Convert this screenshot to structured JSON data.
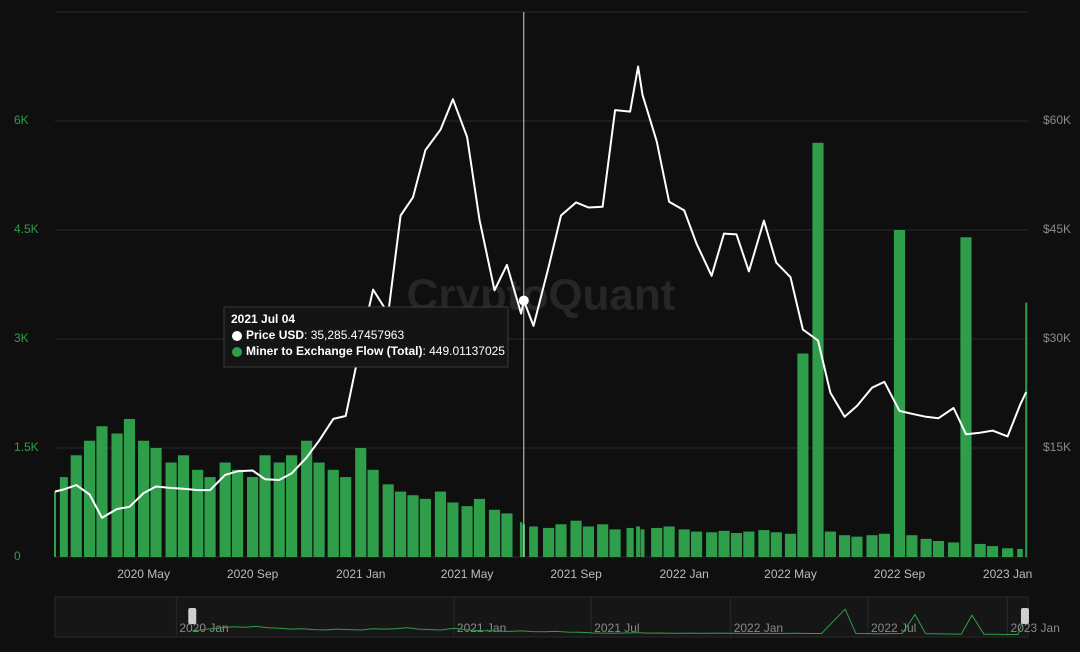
{
  "chart_data": {
    "type": "bar-line",
    "watermark": "CryptoQuant",
    "x": [
      "2020-01-22",
      "2020-02-01",
      "2020-02-15",
      "2020-03-01",
      "2020-03-15",
      "2020-04-01",
      "2020-04-15",
      "2020-05-01",
      "2020-05-15",
      "2020-06-01",
      "2020-06-15",
      "2020-07-01",
      "2020-07-15",
      "2020-08-01",
      "2020-08-15",
      "2020-09-01",
      "2020-09-15",
      "2020-10-01",
      "2020-10-15",
      "2020-11-01",
      "2020-11-15",
      "2020-12-01",
      "2020-12-15",
      "2021-01-01",
      "2021-01-15",
      "2021-02-01",
      "2021-02-15",
      "2021-03-01",
      "2021-03-15",
      "2021-04-01",
      "2021-04-15",
      "2021-05-01",
      "2021-05-15",
      "2021-06-01",
      "2021-06-15",
      "2021-07-01",
      "2021-07-04",
      "2021-07-15",
      "2021-08-01",
      "2021-08-15",
      "2021-09-01",
      "2021-09-15",
      "2021-10-01",
      "2021-10-15",
      "2021-11-01",
      "2021-11-10",
      "2021-11-15",
      "2021-12-01",
      "2021-12-15",
      "2022-01-01",
      "2022-01-15",
      "2022-02-01",
      "2022-02-15",
      "2022-03-01",
      "2022-03-15",
      "2022-04-01",
      "2022-04-15",
      "2022-05-01",
      "2022-05-15",
      "2022-06-01",
      "2022-06-15",
      "2022-07-01",
      "2022-07-15",
      "2022-08-01",
      "2022-08-15",
      "2022-09-01",
      "2022-09-15",
      "2022-10-01",
      "2022-10-15",
      "2022-11-01",
      "2022-11-15",
      "2022-12-01",
      "2022-12-15",
      "2023-01-01",
      "2023-01-15",
      "2023-01-22"
    ],
    "series": [
      {
        "name": "Miner to Exchange Flow (Total)",
        "kind": "bar",
        "axis": "y",
        "color": "#2e9e4a",
        "values": [
          900,
          1100,
          1400,
          1600,
          1800,
          1700,
          1900,
          1600,
          1500,
          1300,
          1400,
          1200,
          1100,
          1300,
          1200,
          1100,
          1400,
          1300,
          1400,
          1600,
          1300,
          1200,
          1100,
          1500,
          1200,
          1000,
          900,
          850,
          800,
          900,
          750,
          700,
          800,
          650,
          600,
          480,
          449.01137025,
          420,
          400,
          450,
          500,
          420,
          450,
          380,
          400,
          420,
          380,
          400,
          420,
          380,
          350,
          340,
          360,
          330,
          350,
          370,
          340,
          320,
          2800,
          5700,
          350,
          300,
          280,
          300,
          320,
          4500,
          300,
          250,
          220,
          200,
          4400,
          180,
          150,
          120,
          110,
          3500
        ]
      },
      {
        "name": "Price USD",
        "kind": "line",
        "axis": "y2",
        "color": "#ffffff",
        "values": [
          9000,
          9300,
          9900,
          8600,
          5400,
          6600,
          6900,
          8800,
          9700,
          9500,
          9400,
          9200,
          9200,
          11300,
          11800,
          11900,
          10700,
          10600,
          11500,
          13700,
          16000,
          19000,
          19400,
          29300,
          36800,
          33500,
          47000,
          49500,
          56000,
          58800,
          63000,
          57800,
          46400,
          36700,
          40200,
          33500,
          35285.47457963,
          31800,
          39900,
          47000,
          48800,
          48100,
          48200,
          61500,
          61300,
          67500,
          63600,
          57200,
          48900,
          47700,
          43100,
          38700,
          44500,
          44400,
          39300,
          46300,
          40500,
          38500,
          31300,
          29800,
          22600,
          19300,
          20800,
          23300,
          24100,
          20100,
          19700,
          19300,
          19100,
          20500,
          16900,
          17100,
          17400,
          16600,
          20900,
          22700
        ]
      }
    ],
    "xlim": [
      "2020-01-22",
      "2023-01-24"
    ],
    "xticks": [
      {
        "value": "2020-05-01",
        "label": "2020 May"
      },
      {
        "value": "2020-09-01",
        "label": "2020 Sep"
      },
      {
        "value": "2021-01-01",
        "label": "2021 Jan"
      },
      {
        "value": "2021-05-01",
        "label": "2021 May"
      },
      {
        "value": "2021-09-01",
        "label": "2021 Sep"
      },
      {
        "value": "2022-01-01",
        "label": "2022 Jan"
      },
      {
        "value": "2022-05-01",
        "label": "2022 May"
      },
      {
        "value": "2022-09-01",
        "label": "2022 Sep"
      },
      {
        "value": "2023-01-01",
        "label": "2023 Jan"
      }
    ],
    "ylim": [
      0,
      7500
    ],
    "yticks": [
      0,
      {
        "value": 1500,
        "label": "1.5K"
      },
      {
        "value": 3000,
        "label": "3K"
      },
      {
        "value": 4500,
        "label": "4.5K"
      },
      {
        "value": 6000,
        "label": "6K"
      }
    ],
    "y2lim": [
      0,
      75000
    ],
    "y2ticks": [
      {
        "value": 15000,
        "label": "$15K"
      },
      {
        "value": 30000,
        "label": "$30K"
      },
      {
        "value": 45000,
        "label": "$45K"
      },
      {
        "value": 60000,
        "label": "$60K"
      }
    ],
    "grid": true,
    "tooltip": {
      "title": "2021 Jul 04",
      "x": "2021-07-04",
      "value_labels": [
        "449.01137025",
        "35,285.47457963"
      ]
    },
    "navigator": {
      "xlim": [
        "2019-07-25",
        "2023-01-28"
      ],
      "xticks": [
        {
          "value": "2020-01-01",
          "label": "2020 Jan"
        },
        {
          "value": "2021-01-01",
          "label": "2021 Jan"
        },
        {
          "value": "2021-07-01",
          "label": "2021 Jul"
        },
        {
          "value": "2022-01-01",
          "label": "2022 Jan"
        },
        {
          "value": "2022-07-01",
          "label": "2022 Jul"
        },
        {
          "value": "2023-01-01",
          "label": "2023 Jan"
        }
      ]
    }
  }
}
